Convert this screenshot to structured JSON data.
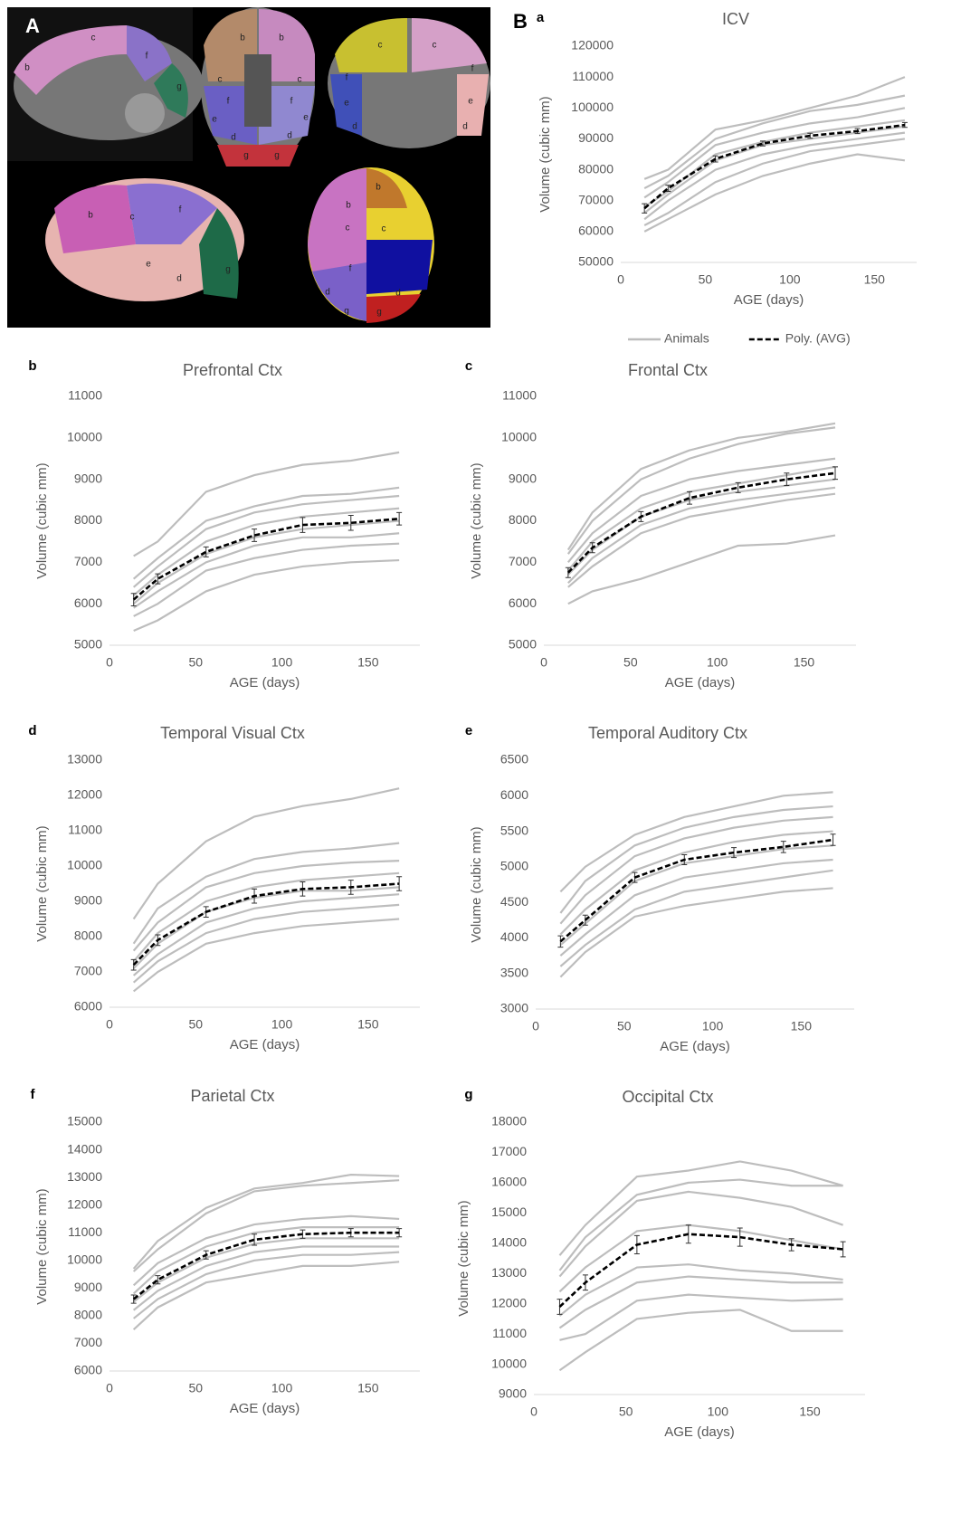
{
  "panel_a": {
    "label": "A",
    "region_labels": [
      "c",
      "b",
      "f",
      "g",
      "b",
      "b",
      "c",
      "c",
      "f",
      "f",
      "e",
      "e",
      "d",
      "d",
      "g",
      "g",
      "c",
      "c",
      "f",
      "f",
      "e",
      "e",
      "d",
      "d",
      "b",
      "c",
      "f",
      "e",
      "d",
      "g",
      "b",
      "b",
      "c",
      "c",
      "f",
      "d",
      "d",
      "g",
      "g"
    ]
  },
  "panel_b_label": "B",
  "chart_data": [
    {
      "type": "line",
      "panel": "a",
      "title": "ICV",
      "x_label": "AGE (days)",
      "y_label": "Volume (cubic mm)",
      "x": [
        14,
        28,
        56,
        84,
        112,
        140,
        168
      ],
      "xlim": [
        0,
        175
      ],
      "xticks": [
        0,
        50,
        100,
        150
      ],
      "ylim": [
        50000,
        120000
      ],
      "yticks": [
        50000,
        60000,
        70000,
        80000,
        90000,
        100000,
        110000,
        120000
      ],
      "legend": "bottom",
      "series": [
        {
          "name": "Animals",
          "color": "#bdbdbd",
          "lines": [
            [
              77000,
              80000,
              93000,
              96000,
              100000,
              104000,
              110000
            ],
            [
              74000,
              78000,
              90000,
              95000,
              99000,
              101000,
              104000
            ],
            [
              71000,
              76000,
              88000,
              92000,
              95000,
              97000,
              100000
            ],
            [
              68000,
              73000,
              85000,
              89000,
              92000,
              94000,
              96000
            ],
            [
              66000,
              72000,
              83000,
              88000,
              90000,
              92000,
              94000
            ],
            [
              64000,
              70000,
              80000,
              85000,
              88000,
              90000,
              92000
            ],
            [
              62000,
              66000,
              76000,
              82000,
              86000,
              88000,
              90000
            ],
            [
              60000,
              64000,
              72000,
              78000,
              82000,
              85000,
              83000
            ]
          ]
        },
        {
          "name": "Poly. (AVG)",
          "color": "#000000",
          "dashed": true,
          "values": [
            67500,
            74000,
            83500,
            88500,
            91000,
            92500,
            94500
          ],
          "errors": [
            1500,
            1000,
            1000,
            800,
            800,
            800,
            800
          ]
        }
      ]
    },
    {
      "type": "line",
      "panel": "b",
      "title": "Prefrontal Ctx",
      "x_label": "AGE (days)",
      "y_label": "Volume (cubic mm)",
      "x": [
        14,
        28,
        56,
        84,
        112,
        140,
        168
      ],
      "xlim": [
        0,
        180
      ],
      "xticks": [
        0,
        50,
        100,
        150
      ],
      "ylim": [
        5000,
        11000
      ],
      "yticks": [
        5000,
        6000,
        7000,
        8000,
        9000,
        10000,
        11000
      ],
      "series": [
        {
          "color": "#bdbdbd",
          "lines": [
            [
              7150,
              7500,
              8700,
              9100,
              9350,
              9450,
              9650
            ],
            [
              6600,
              7100,
              8000,
              8350,
              8600,
              8650,
              8800
            ],
            [
              6400,
              6900,
              7800,
              8200,
              8400,
              8500,
              8600
            ],
            [
              6200,
              6700,
              7500,
              7900,
              8100,
              8200,
              8300
            ],
            [
              6000,
              6500,
              7200,
              7600,
              7800,
              7900,
              8000
            ],
            [
              5900,
              6300,
              7000,
              7400,
              7600,
              7600,
              7700
            ],
            [
              5700,
              6000,
              6800,
              7100,
              7300,
              7400,
              7450
            ],
            [
              5350,
              5600,
              6300,
              6700,
              6900,
              7000,
              7050
            ]
          ]
        },
        {
          "color": "#000000",
          "dashed": true,
          "values": [
            6100,
            6600,
            7250,
            7650,
            7900,
            7950,
            8050
          ],
          "errors": [
            150,
            120,
            120,
            150,
            180,
            180,
            150
          ]
        }
      ]
    },
    {
      "type": "line",
      "panel": "c",
      "title": "Frontal Ctx",
      "x_label": "AGE (days)",
      "y_label": "Volume (cubic mm)",
      "x": [
        14,
        28,
        56,
        84,
        112,
        140,
        168
      ],
      "xlim": [
        0,
        180
      ],
      "xticks": [
        0,
        50,
        100,
        150
      ],
      "ylim": [
        5000,
        11000
      ],
      "yticks": [
        5000,
        6000,
        7000,
        8000,
        9000,
        10000,
        11000
      ],
      "series": [
        {
          "color": "#bdbdbd",
          "lines": [
            [
              7300,
              8200,
              9250,
              9700,
              10000,
              10150,
              10350
            ],
            [
              7200,
              8000,
              9000,
              9500,
              9850,
              10100,
              10250
            ],
            [
              7000,
              7700,
              8600,
              9000,
              9200,
              9350,
              9500
            ],
            [
              6800,
              7500,
              8300,
              8700,
              8900,
              9100,
              9300
            ],
            [
              6700,
              7300,
              8100,
              8500,
              8700,
              8850,
              9000
            ],
            [
              6500,
              7100,
              7900,
              8300,
              8500,
              8650,
              8800
            ],
            [
              6400,
              6900,
              7700,
              8100,
              8300,
              8500,
              8650
            ],
            [
              6000,
              6300,
              6600,
              7000,
              7400,
              7450,
              7650
            ]
          ]
        },
        {
          "color": "#000000",
          "dashed": true,
          "values": [
            6750,
            7350,
            8100,
            8550,
            8800,
            9000,
            9150
          ],
          "errors": [
            120,
            120,
            120,
            150,
            120,
            150,
            150
          ]
        }
      ]
    },
    {
      "type": "line",
      "panel": "d",
      "title": "Temporal Visual Ctx",
      "x_label": "AGE (days)",
      "y_label": "Volume (cubic mm)",
      "x": [
        14,
        28,
        56,
        84,
        112,
        140,
        168
      ],
      "xlim": [
        0,
        180
      ],
      "xticks": [
        0,
        50,
        100,
        150
      ],
      "ylim": [
        6000,
        13000
      ],
      "yticks": [
        6000,
        7000,
        8000,
        9000,
        10000,
        11000,
        12000,
        13000
      ],
      "series": [
        {
          "color": "#bdbdbd",
          "lines": [
            [
              8500,
              9500,
              10700,
              11400,
              11700,
              11900,
              12200
            ],
            [
              7800,
              8800,
              9700,
              10200,
              10400,
              10500,
              10650
            ],
            [
              7600,
              8400,
              9400,
              9800,
              10000,
              10100,
              10150
            ],
            [
              7300,
              8100,
              9000,
              9400,
              9600,
              9700,
              9800
            ],
            [
              7100,
              7800,
              8700,
              9100,
              9300,
              9300,
              9400
            ],
            [
              6900,
              7500,
              8400,
              8800,
              9000,
              9100,
              9200
            ],
            [
              6700,
              7300,
              8100,
              8500,
              8700,
              8800,
              8900
            ],
            [
              6450,
              7000,
              7800,
              8100,
              8300,
              8400,
              8500
            ]
          ]
        },
        {
          "color": "#000000",
          "dashed": true,
          "values": [
            7200,
            7900,
            8700,
            9150,
            9350,
            9400,
            9500
          ],
          "errors": [
            150,
            150,
            150,
            200,
            200,
            200,
            200
          ]
        }
      ]
    },
    {
      "type": "line",
      "panel": "e",
      "title": "Temporal Auditory Ctx",
      "x_label": "AGE (days)",
      "y_label": "Volume (cubic mm)",
      "x": [
        14,
        28,
        56,
        84,
        112,
        140,
        168
      ],
      "xlim": [
        0,
        180
      ],
      "xticks": [
        0,
        50,
        100,
        150
      ],
      "ylim": [
        3000,
        6500
      ],
      "yticks": [
        3000,
        3500,
        4000,
        4500,
        5000,
        5500,
        6000,
        6500
      ],
      "series": [
        {
          "color": "#bdbdbd",
          "lines": [
            [
              4650,
              5000,
              5450,
              5700,
              5850,
              6000,
              6050
            ],
            [
              4350,
              4800,
              5300,
              5550,
              5700,
              5800,
              5850
            ],
            [
              4200,
              4600,
              5150,
              5400,
              5550,
              5650,
              5700
            ],
            [
              4050,
              4400,
              4950,
              5200,
              5350,
              5450,
              5500
            ],
            [
              3900,
              4200,
              4800,
              5050,
              5150,
              5250,
              5300
            ],
            [
              3750,
              4050,
              4600,
              4850,
              4950,
              5050,
              5100
            ],
            [
              3600,
              3900,
              4400,
              4650,
              4750,
              4850,
              4950
            ],
            [
              3450,
              3800,
              4300,
              4450,
              4550,
              4650,
              4700
            ]
          ]
        },
        {
          "color": "#000000",
          "dashed": true,
          "values": [
            3950,
            4250,
            4850,
            5100,
            5200,
            5280,
            5380
          ],
          "errors": [
            80,
            70,
            70,
            70,
            70,
            80,
            80
          ]
        }
      ]
    },
    {
      "type": "line",
      "panel": "f",
      "title": "Parietal Ctx",
      "x_label": "AGE (days)",
      "y_label": "Volume (cubic mm)",
      "x": [
        14,
        28,
        56,
        84,
        112,
        140,
        168
      ],
      "xlim": [
        0,
        180
      ],
      "xticks": [
        0,
        50,
        100,
        150
      ],
      "ylim": [
        6000,
        15000
      ],
      "yticks": [
        6000,
        7000,
        8000,
        9000,
        10000,
        11000,
        12000,
        13000,
        14000,
        15000
      ],
      "series": [
        {
          "color": "#bdbdbd",
          "lines": [
            [
              9700,
              10700,
              11900,
              12600,
              12800,
              13100,
              13050
            ],
            [
              9600,
              10400,
              11700,
              12500,
              12700,
              12800,
              12900
            ],
            [
              9100,
              9900,
              10800,
              11300,
              11500,
              11600,
              11500
            ],
            [
              8800,
              9600,
              10500,
              11000,
              11200,
              11200,
              11200
            ],
            [
              8500,
              9200,
              10100,
              10600,
              10800,
              10800,
              10800
            ],
            [
              8200,
              8900,
              9800,
              10300,
              10500,
              10500,
              10500
            ],
            [
              7900,
              8600,
              9500,
              10000,
              10200,
              10200,
              10300
            ],
            [
              7500,
              8300,
              9200,
              9500,
              9800,
              9800,
              9950
            ]
          ]
        },
        {
          "color": "#000000",
          "dashed": true,
          "values": [
            8600,
            9300,
            10200,
            10750,
            10950,
            11000,
            11000
          ],
          "errors": [
            150,
            150,
            150,
            200,
            150,
            150,
            150
          ]
        }
      ]
    },
    {
      "type": "line",
      "panel": "g",
      "title": "Occipital Ctx",
      "x_label": "AGE (days)",
      "y_label": "Volume (cubic mm)",
      "x": [
        14,
        28,
        56,
        84,
        112,
        140,
        168
      ],
      "xlim": [
        0,
        180
      ],
      "xticks": [
        0,
        50,
        100,
        150
      ],
      "ylim": [
        9000,
        18000
      ],
      "yticks": [
        9000,
        10000,
        11000,
        12000,
        13000,
        14000,
        15000,
        16000,
        17000,
        18000
      ],
      "series": [
        {
          "color": "#bdbdbd",
          "lines": [
            [
              13600,
              14600,
              16200,
              16400,
              16700,
              16400,
              15900
            ],
            [
              13100,
              14200,
              15600,
              16000,
              16100,
              15900,
              15900
            ],
            [
              12900,
              13900,
              15400,
              15700,
              15500,
              15200,
              14600
            ],
            [
              12400,
              13200,
              14400,
              14600,
              14400,
              14100,
              13800
            ],
            [
              11600,
              12300,
              13200,
              13300,
              13100,
              13000,
              12800
            ],
            [
              11200,
              11800,
              12700,
              12900,
              12800,
              12700,
              12700
            ],
            [
              10800,
              11000,
              12100,
              12300,
              12200,
              12100,
              12150
            ],
            [
              9800,
              10400,
              11500,
              11700,
              11800,
              11100,
              11100
            ]
          ]
        },
        {
          "color": "#000000",
          "dashed": true,
          "values": [
            11900,
            12700,
            13950,
            14300,
            14200,
            13950,
            13800
          ],
          "errors": [
            250,
            250,
            300,
            300,
            300,
            200,
            250
          ]
        }
      ]
    }
  ]
}
